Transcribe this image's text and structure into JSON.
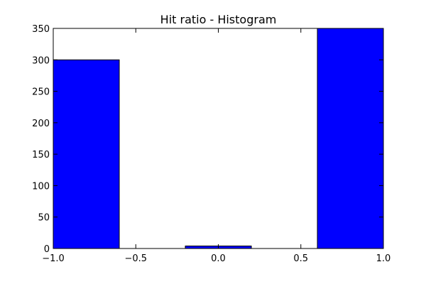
{
  "chart_data": {
    "type": "bar",
    "title": "Hit ratio - Histogram",
    "xlabel": "",
    "ylabel": "",
    "xlim": [
      -1.0,
      1.0
    ],
    "ylim": [
      0,
      350
    ],
    "grid": false,
    "bin_width": 0.4,
    "bar_color": "#0000ff",
    "bins": [
      {
        "left": -1.0,
        "right": -0.6,
        "value": 300
      },
      {
        "left": -0.2,
        "right": 0.2,
        "value": 4
      },
      {
        "left": 0.6,
        "right": 1.0,
        "value": 350
      }
    ],
    "xticks": [
      -1.0,
      -0.5,
      0.0,
      0.5,
      1.0
    ],
    "xtick_labels": [
      "−1.0",
      "−0.5",
      "0.0",
      "0.5",
      "1.0"
    ],
    "yticks": [
      0,
      50,
      100,
      150,
      200,
      250,
      300,
      350
    ],
    "ytick_labels": [
      "0",
      "50",
      "100",
      "150",
      "200",
      "250",
      "300",
      "350"
    ]
  }
}
